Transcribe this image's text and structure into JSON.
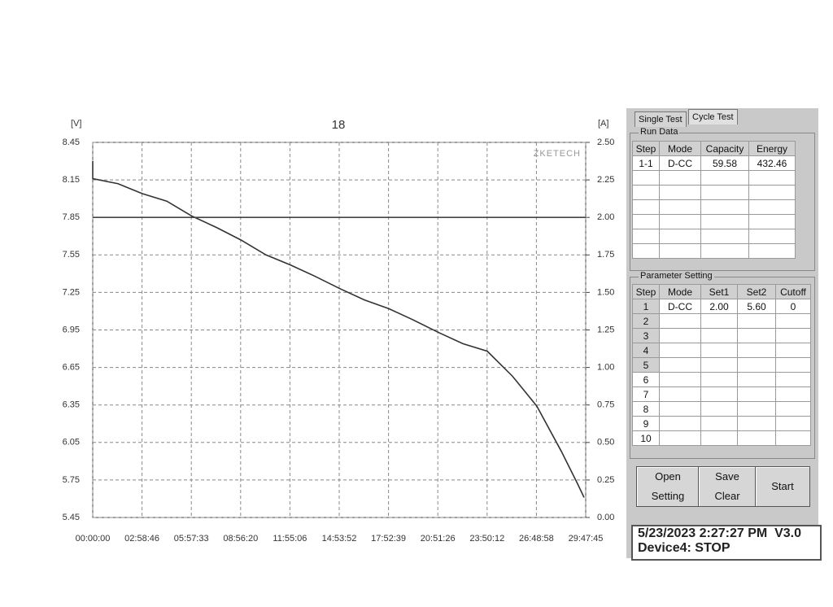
{
  "chart_data": {
    "type": "line",
    "title": "18",
    "y_label": "[V]",
    "y2_label": "[A]",
    "watermark": "ZKETECH",
    "xlim": [
      0,
      107265
    ],
    "xticks": [
      {
        "value": 0,
        "label": "00:00:00"
      },
      {
        "value": 10726,
        "label": "02:58:46"
      },
      {
        "value": 21453,
        "label": "05:57:33"
      },
      {
        "value": 32180,
        "label": "08:56:20"
      },
      {
        "value": 42906,
        "label": "11:55:06"
      },
      {
        "value": 53632,
        "label": "14:53:52"
      },
      {
        "value": 64359,
        "label": "17:52:39"
      },
      {
        "value": 75086,
        "label": "20:51:26"
      },
      {
        "value": 85812,
        "label": "23:50:12"
      },
      {
        "value": 96538,
        "label": "26:48:58"
      },
      {
        "value": 107265,
        "label": "29:47:45"
      }
    ],
    "ylim": [
      5.45,
      8.45
    ],
    "yticks": [
      5.45,
      5.75,
      6.05,
      6.35,
      6.65,
      6.95,
      7.25,
      7.55,
      7.85,
      8.15,
      8.45
    ],
    "y2lim": [
      0,
      2.5
    ],
    "y2ticks": [
      {
        "value": 0,
        "label": "0.00"
      },
      0.25,
      {
        "value": 0.5,
        "label": "0.50"
      },
      0.75,
      {
        "value": 1,
        "label": "1.00"
      },
      1.25,
      {
        "value": 1.5,
        "label": "1.50"
      },
      1.75,
      {
        "value": 2,
        "label": "2.00"
      },
      2.25,
      {
        "value": 2.5,
        "label": "2.50"
      }
    ],
    "grid": true,
    "series": [
      {
        "color": "#333333",
        "x": [
          0,
          0,
          5490,
          10800,
          16110,
          21600,
          26910,
          32220,
          37700,
          43010,
          48320,
          53810,
          59120,
          64430,
          69740,
          75230,
          80540,
          85850,
          91330,
          96640,
          101950,
          105490,
          106910
        ],
        "values": [
          8.3,
          8.16,
          8.12,
          8.04,
          7.98,
          7.86,
          7.77,
          7.67,
          7.55,
          7.47,
          7.38,
          7.28,
          7.19,
          7.12,
          7.03,
          6.93,
          6.84,
          6.78,
          6.58,
          6.34,
          5.98,
          5.72,
          5.61
        ]
      },
      {
        "color": "#444444",
        "axis": "y2",
        "x": [
          0,
          107265
        ],
        "values": [
          2,
          2
        ]
      }
    ]
  },
  "tabs": [
    "Single Test",
    "Cycle Test"
  ],
  "run_data": {
    "title": "Run Data",
    "headers": [
      "Step",
      "Mode",
      "Capacity",
      "Energy"
    ],
    "rows": [
      [
        "1-1",
        "D-CC",
        "59.58",
        "432.46"
      ]
    ]
  },
  "parameter_setting": {
    "title": "Parameter Setting",
    "headers": [
      "Step",
      "Mode",
      "Set1",
      "Set2",
      "Cutoff"
    ],
    "rows": [
      [
        "1",
        "D-CC",
        "2.00",
        "5.60",
        "0"
      ],
      [
        "2"
      ],
      [
        "3"
      ],
      [
        "4"
      ],
      [
        "5"
      ],
      [
        "6"
      ],
      [
        "7"
      ],
      [
        "8"
      ],
      [
        "9"
      ],
      [
        "10"
      ]
    ]
  },
  "buttons": {
    "open": "Open",
    "setting": "Setting",
    "save": "Save",
    "clear": "Clear",
    "start": "Start"
  },
  "status": {
    "line1": "5/23/2023 2:27:27 PM  V3.0",
    "line2": "Device4: STOP"
  }
}
